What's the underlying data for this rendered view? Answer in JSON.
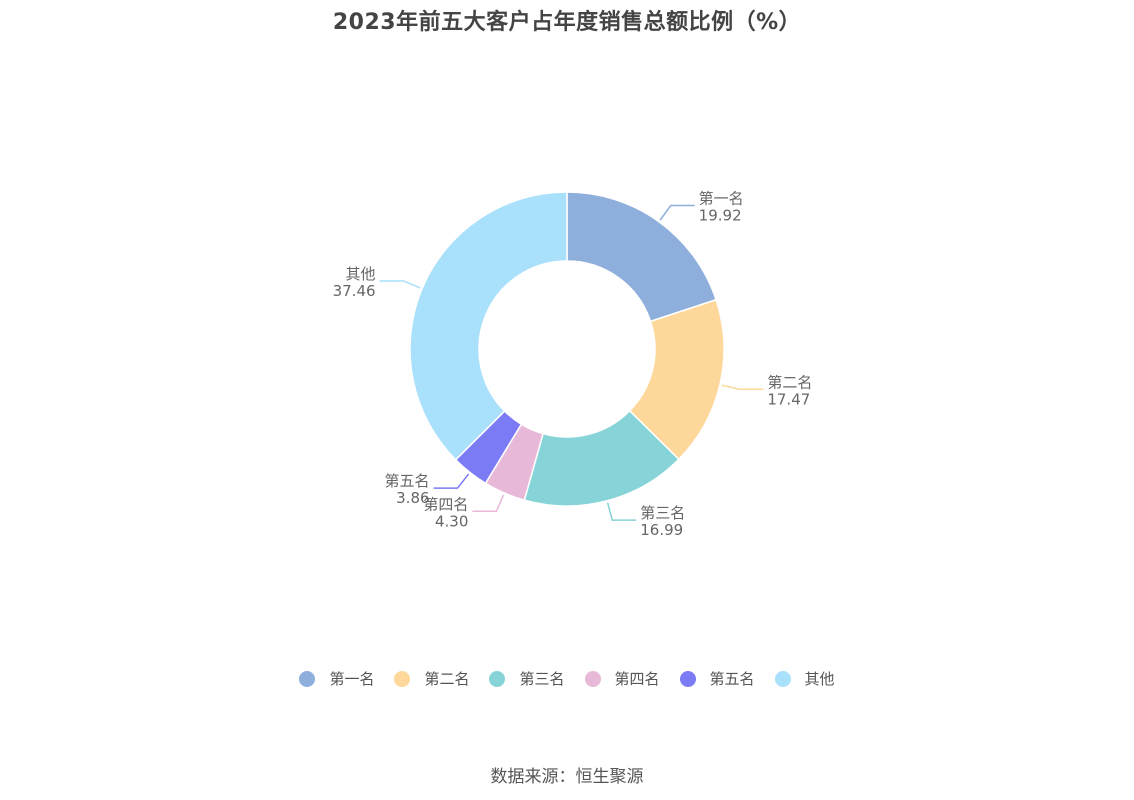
{
  "chart_data": {
    "type": "pie",
    "title": "2023年前五大客户占年度销售总额比例（%）",
    "categories": [
      "第一名",
      "第二名",
      "第三名",
      "第四名",
      "第五名",
      "其他"
    ],
    "values": [
      19.92,
      17.47,
      16.99,
      4.3,
      3.86,
      37.46
    ],
    "value_labels": [
      "19.92",
      "17.47",
      "16.99",
      "4.30",
      "3.86",
      "37.46"
    ],
    "colors": [
      "#8eaedc",
      "#fdd89a",
      "#86d4d8",
      "#e8b8d8",
      "#7b7bf5",
      "#a9e0fb"
    ],
    "legend_position": "bottom"
  },
  "source": "数据来源：恒生聚源"
}
